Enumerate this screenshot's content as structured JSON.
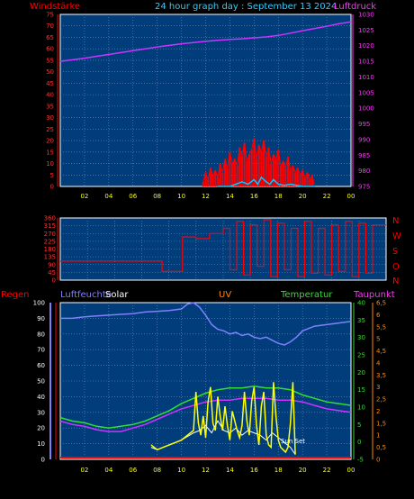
{
  "header": {
    "title": "24 hour graph day : September 13 2024",
    "left_label": "Windstärke",
    "right_label": "Luftdruck"
  },
  "bottom_header": {
    "regen": "Regen",
    "luftfeuchte": "Luftfeuchte",
    "solar": "Solar",
    "uv": "UV",
    "temperatur": "Temperatur",
    "taupunkt": "Taupunkt"
  },
  "direction_labels": [
    "N",
    "W",
    "S",
    "O",
    "N"
  ],
  "time_labels": [
    "02",
    "04",
    "06",
    "08",
    "10",
    "12",
    "14",
    "16",
    "18",
    "20",
    "22",
    "00"
  ],
  "sun_set_label": "Sun Set",
  "colors": {
    "plot_bg": "#003d7a",
    "grid": "#6d8fbf",
    "wind": "#ff0000",
    "gust": "#00c8ff",
    "pressure": "#cc33ff",
    "direction": "#ff0000",
    "humidity": "#8080ff",
    "temperature": "#33dd33",
    "dewpoint": "#cc33ff",
    "solar": "#ffffff",
    "uv": "#ffff00",
    "uv_label": "#ff8800",
    "rain": "#ff0000"
  },
  "chart_data": [
    {
      "type": "line",
      "name": "wind-pressure",
      "x_unit": "hour",
      "xlim": [
        0,
        24
      ],
      "left_axis": {
        "label": "Windstärke",
        "ylim": [
          0,
          75
        ],
        "ticks": [
          0,
          5,
          10,
          15,
          20,
          25,
          30,
          35,
          40,
          45,
          50,
          55,
          60,
          65,
          70,
          75
        ]
      },
      "right_axis": {
        "label": "Luftdruck",
        "ylim": [
          975,
          1030
        ],
        "ticks": [
          975,
          980,
          985,
          990,
          995,
          1000,
          1005,
          1010,
          1015,
          1020,
          1025,
          1030
        ]
      },
      "series": [
        {
          "name": "Luftdruck",
          "axis": "right",
          "x": [
            0,
            1,
            2,
            3,
            4,
            5,
            6,
            7,
            8,
            9,
            10,
            11,
            12,
            13,
            14,
            15,
            16,
            17,
            18,
            19,
            20,
            21,
            22,
            23,
            24
          ],
          "y": [
            1015,
            1015.5,
            1016,
            1016.6,
            1017.2,
            1017.8,
            1018.4,
            1019,
            1019.6,
            1020.1,
            1020.6,
            1021,
            1021.4,
            1021.7,
            1022,
            1022.2,
            1022.5,
            1022.8,
            1023.3,
            1024,
            1024.8,
            1025.5,
            1026.2,
            1027,
            1027.6
          ]
        },
        {
          "name": "Windstärke",
          "axis": "left",
          "x": [
            11.8,
            12,
            12.2,
            12.4,
            12.6,
            12.8,
            13,
            13.2,
            13.4,
            13.6,
            13.8,
            14,
            14.2,
            14.4,
            14.6,
            14.8,
            15,
            15.2,
            15.4,
            15.6,
            15.8,
            16,
            16.2,
            16.4,
            16.6,
            16.8,
            17,
            17.2,
            17.4,
            17.6,
            17.8,
            18,
            18.2,
            18.4,
            18.6,
            18.8,
            19,
            19.2,
            19.4,
            19.6,
            19.8,
            20,
            20.2,
            20.4,
            20.6,
            20.8,
            21
          ],
          "y": [
            2,
            6,
            3,
            8,
            5,
            7,
            4,
            10,
            6,
            12,
            8,
            15,
            10,
            12,
            9,
            17,
            13,
            19,
            11,
            14,
            16,
            21,
            12,
            18,
            15,
            20,
            13,
            17,
            10,
            14,
            12,
            16,
            9,
            11,
            8,
            13,
            7,
            9,
            6,
            8,
            5,
            7,
            4,
            6,
            3,
            5,
            0
          ]
        },
        {
          "name": "Böen",
          "axis": "left",
          "x": [
            13,
            14,
            14.5,
            15,
            15.5,
            16,
            16.3,
            16.6,
            17,
            17.3,
            17.6,
            18,
            18.5,
            19,
            20,
            21
          ],
          "y": [
            0,
            0,
            1,
            2,
            1,
            3,
            1,
            4,
            2,
            1,
            3,
            1,
            0.5,
            1,
            0,
            0
          ]
        }
      ]
    },
    {
      "type": "scatter",
      "name": "wind-direction",
      "x_unit": "hour",
      "xlim": [
        0,
        24
      ],
      "ylim": [
        0,
        360
      ],
      "ticks": [
        0,
        45,
        90,
        135,
        180,
        225,
        270,
        315,
        360
      ],
      "series": [
        {
          "name": "Windrichtung",
          "x": [
            0,
            7.5,
            7.5,
            9,
            9,
            10,
            10,
            11,
            11,
            12,
            12,
            12.5,
            12.5,
            13,
            13,
            13.5,
            13.5,
            14,
            14,
            14.5,
            14.5,
            15,
            15,
            15.5,
            15.5,
            16,
            16,
            16.5,
            16.5,
            17,
            17,
            17.5,
            17.5,
            18,
            18,
            18.5,
            18.5,
            19,
            19,
            19.5,
            19.5,
            20,
            20,
            20.5,
            20.5,
            21,
            21,
            21.5,
            21.5,
            22,
            22,
            22.5,
            22.5,
            23,
            23,
            24
          ],
          "y": [
            110,
            110,
            50,
            50,
            250,
            250,
            240,
            240,
            270,
            270,
            300,
            300,
            60,
            60,
            340,
            340,
            30,
            30,
            320,
            320,
            80,
            80,
            350,
            350,
            20,
            20,
            330,
            330,
            60,
            60,
            300,
            300,
            20,
            20,
            340,
            340,
            40,
            40,
            300,
            300,
            30,
            30,
            320,
            320,
            50,
            50,
            340,
            340,
            20,
            20,
            330,
            330,
            40,
            40,
            320,
            320
          ]
        }
      ]
    },
    {
      "type": "line",
      "name": "humidity-temp-solar-uv",
      "x_unit": "hour",
      "xlim": [
        0,
        24
      ],
      "left_axis": {
        "label": "Luftfeuchte",
        "ylim": [
          0,
          100
        ],
        "ticks": [
          0,
          10,
          20,
          30,
          40,
          50,
          60,
          70,
          80,
          90,
          100
        ]
      },
      "temp_axis": {
        "label": "Temperatur",
        "ylim": [
          -5,
          40
        ],
        "ticks": [
          -5,
          0,
          5,
          10,
          15,
          20,
          25,
          30,
          35,
          40
        ]
      },
      "uv_axis": {
        "label": "UV",
        "ylim": [
          0,
          6.5
        ],
        "ticks": [
          0,
          0.5,
          1,
          1.5,
          2,
          2.5,
          3,
          3.5,
          4,
          4.5,
          5,
          5.5,
          6,
          6.5
        ]
      },
      "series": [
        {
          "name": "Luftfeuchte",
          "axis": "left",
          "x": [
            0,
            1,
            2,
            3,
            4,
            5,
            6,
            7,
            8,
            9,
            10,
            10.5,
            11,
            11.5,
            12,
            12.5,
            13,
            13.5,
            14,
            14.5,
            15,
            15.5,
            16,
            16.5,
            17,
            17.5,
            18,
            18.5,
            19,
            19.5,
            20,
            21,
            22,
            23,
            24
          ],
          "y": [
            90,
            90,
            91,
            91.5,
            92,
            92.5,
            93,
            94,
            94.5,
            95,
            96,
            99,
            100,
            97,
            92,
            86,
            83,
            82,
            80,
            81,
            79,
            80,
            78,
            77,
            78,
            76,
            74,
            73,
            75,
            78,
            82,
            85,
            86,
            87,
            88
          ]
        },
        {
          "name": "Temperatur",
          "axis": "temp",
          "x": [
            0,
            1,
            2,
            3,
            4,
            5,
            6,
            7,
            8,
            9,
            10,
            11,
            12,
            13,
            14,
            15,
            16,
            17,
            18,
            19,
            20,
            21,
            22,
            23,
            24
          ],
          "y": [
            7,
            6,
            5.5,
            4.5,
            4,
            4.5,
            5,
            6,
            7.5,
            9,
            11,
            12.5,
            14,
            15,
            15.5,
            15.5,
            16,
            15.5,
            15.5,
            15,
            13.5,
            12.5,
            11.5,
            11,
            10.5
          ]
        },
        {
          "name": "Taupunkt",
          "axis": "temp",
          "x": [
            0,
            1,
            2,
            3,
            4,
            5,
            6,
            7,
            8,
            9,
            10,
            11,
            12,
            13,
            14,
            15,
            16,
            17,
            18,
            19,
            20,
            21,
            22,
            23,
            24
          ],
          "y": [
            6,
            5,
            4.5,
            3.5,
            3,
            3,
            4,
            5,
            6.5,
            8,
            9.5,
            10.5,
            11.5,
            12,
            12,
            12.5,
            12.5,
            12.5,
            12,
            12,
            11.5,
            10.5,
            9.5,
            9,
            8.5
          ]
        },
        {
          "name": "UV",
          "axis": "uv",
          "x": [
            7.5,
            8,
            8.5,
            9,
            9.5,
            10,
            10.5,
            11,
            11.2,
            11.4,
            11.6,
            11.8,
            12,
            12.2,
            12.4,
            12.6,
            12.8,
            13,
            13.2,
            13.4,
            13.6,
            13.8,
            14,
            14.2,
            14.4,
            14.6,
            14.8,
            15,
            15.2,
            15.4,
            15.6,
            15.8,
            16,
            16.2,
            16.4,
            16.6,
            16.8,
            17,
            17.2,
            17.4,
            17.6,
            17.8,
            18,
            18.2,
            18.4,
            18.6,
            18.8,
            19,
            19.2,
            19.4
          ],
          "y": [
            0.6,
            0.4,
            0.5,
            0.6,
            0.7,
            0.8,
            1,
            1.2,
            2.8,
            1.5,
            1,
            1.8,
            0.9,
            2.4,
            3,
            1.5,
            1.2,
            2.6,
            1.8,
            1.2,
            2.2,
            1.4,
            0.8,
            2,
            1.6,
            1.2,
            0.9,
            1.4,
            2.8,
            1.6,
            1,
            2.4,
            3,
            1.4,
            0.6,
            2.2,
            2.8,
            1,
            0.6,
            0.5,
            3.2,
            1.8,
            0.8,
            0.5,
            0.4,
            0.3,
            0.5,
            1.5,
            3.2,
            0.2
          ]
        },
        {
          "name": "Solar",
          "axis": "uv",
          "x": [
            7.5,
            8,
            9,
            10,
            11,
            11.5,
            12,
            12.5,
            13,
            13.5,
            14,
            14.5,
            15,
            15.5,
            16,
            16.5,
            17,
            17.5,
            18,
            18.5,
            19,
            19.4
          ],
          "y": [
            0.5,
            0.4,
            0.6,
            0.8,
            1.1,
            1.2,
            1.4,
            1.1,
            1.6,
            1.2,
            1.1,
            1.3,
            1,
            1.2,
            1.1,
            1,
            0.8,
            1.1,
            0.9,
            0.7,
            0.5,
            0.2
          ]
        }
      ]
    }
  ]
}
